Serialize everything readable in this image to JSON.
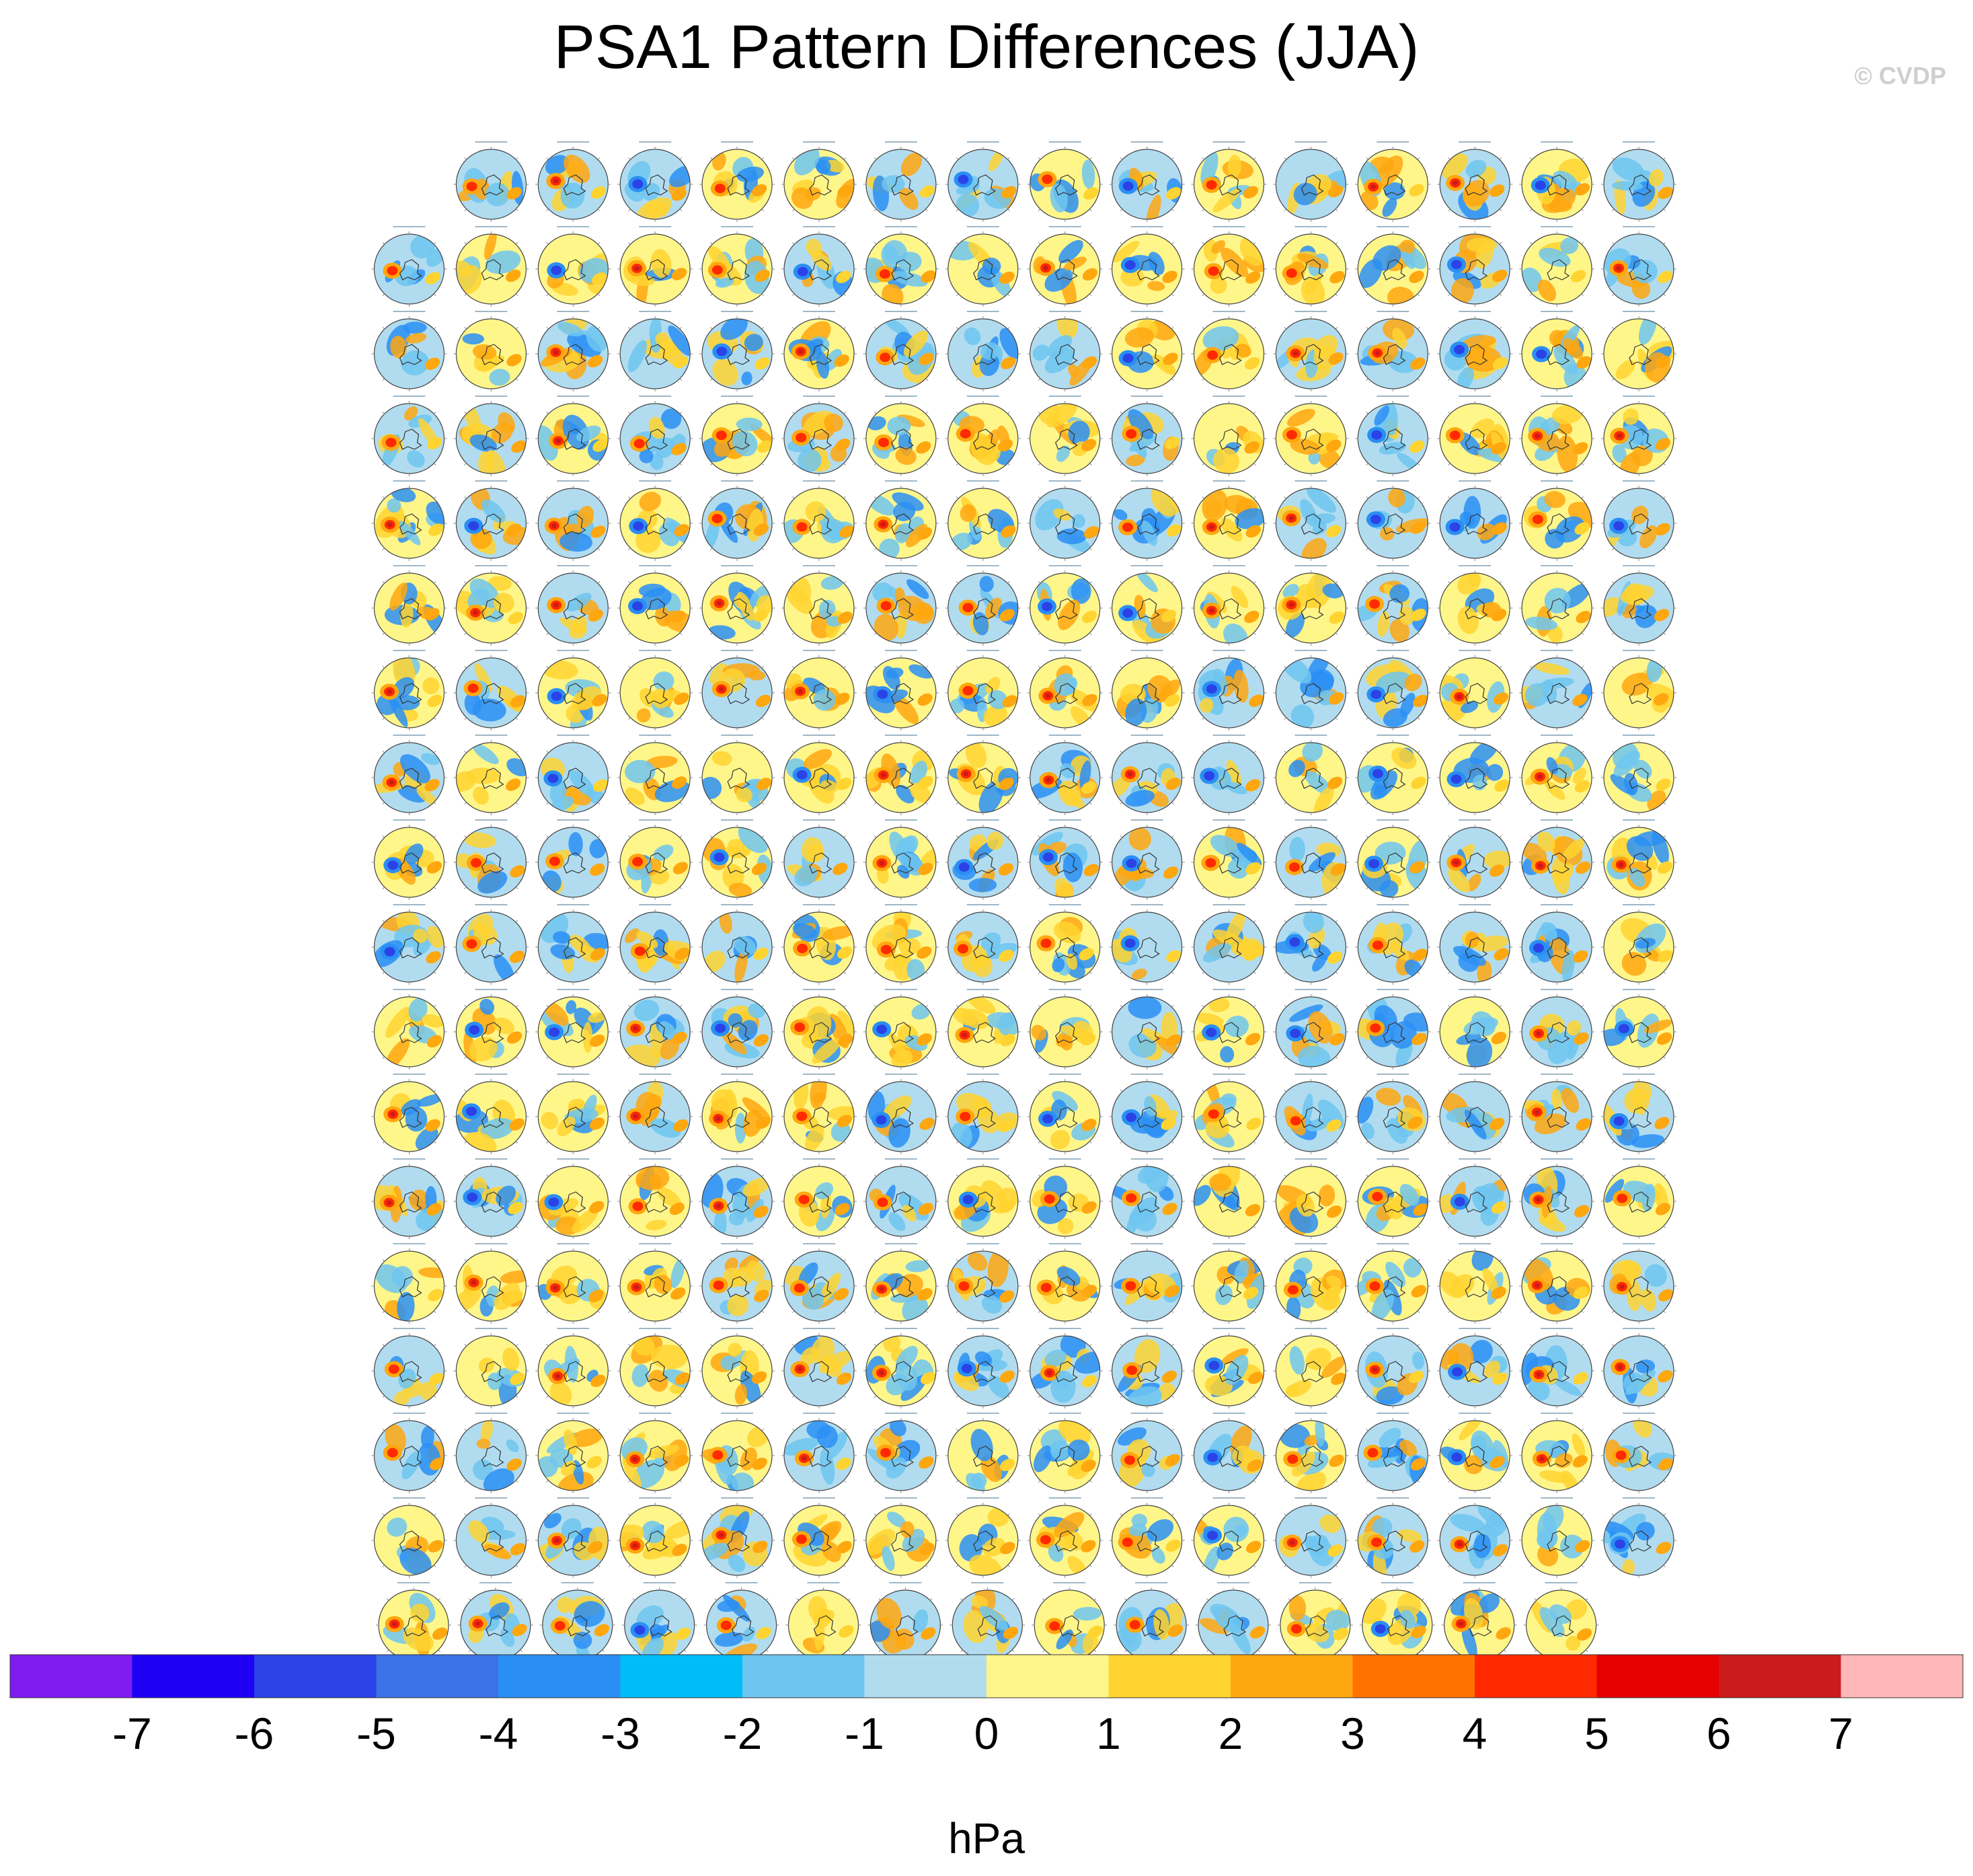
{
  "header": {
    "title": "PSA1 Pattern Differences (JJA)",
    "watermark": "© CVDP"
  },
  "chart_data": {
    "type": "heatmap",
    "subtype": "small-multiples polar-stereographic maps (Southern Hemisphere)",
    "title": "PSA1 Pattern Differences (JJA)",
    "panel_rows": [
      15,
      16,
      16,
      16,
      16,
      16,
      16,
      16,
      16,
      16,
      16,
      16,
      16,
      16,
      16,
      16,
      16,
      15
    ],
    "panel_count": 286,
    "colorbar": {
      "units": "hPa",
      "levels": [
        -7,
        -6,
        -5,
        -4,
        -3,
        -2,
        -1,
        0,
        1,
        2,
        3,
        4,
        5,
        6,
        7
      ],
      "colors": [
        "#7f1cf0",
        "#1e00f5",
        "#2b43e6",
        "#3a72e8",
        "#2a8ff4",
        "#00bdfa",
        "#6ec6f0",
        "#b1dcf0",
        "#fff68a",
        "#ffd430",
        "#ffa70f",
        "#ff7200",
        "#ff2a00",
        "#e60000",
        "#cb1b1b",
        "#ffb6b6"
      ]
    }
  }
}
